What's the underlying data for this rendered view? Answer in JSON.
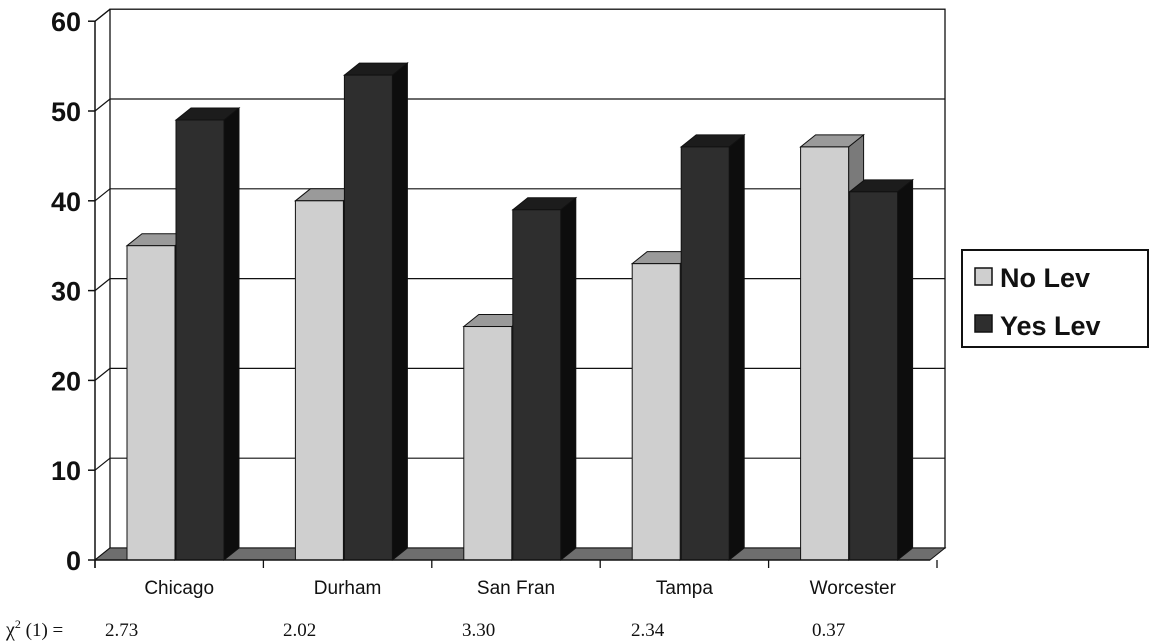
{
  "chart_data": {
    "type": "bar",
    "categories": [
      "Chicago",
      "Durham",
      "San Fran",
      "Tampa",
      "Worcester"
    ],
    "series": [
      {
        "name": "No Lev",
        "values": [
          35,
          40,
          26,
          33,
          46
        ],
        "color": "#cfcfcf"
      },
      {
        "name": "Yes Lev",
        "values": [
          49,
          54,
          39,
          46,
          41
        ],
        "color": "#2e2e2e"
      }
    ],
    "ylim": [
      0,
      60
    ],
    "yticks": [
      "0",
      "10",
      "20",
      "30",
      "40",
      "50",
      "60"
    ],
    "grid": true,
    "style": "3d",
    "legend_position": "right",
    "chi_square": {
      "label_prefix": "χ",
      "label_sup": "2",
      "label_suffix": " (1) =",
      "values": [
        "2.73",
        "2.02",
        "3.30",
        "2.34",
        "0.37"
      ]
    }
  }
}
